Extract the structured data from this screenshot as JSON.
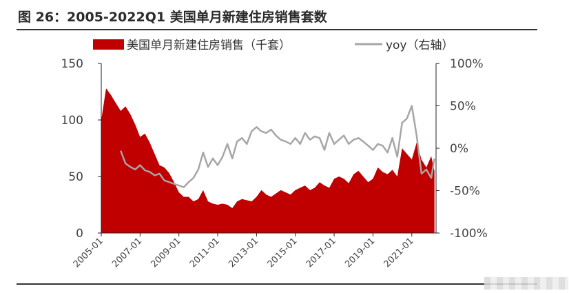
{
  "title": "图 26：2005-2022Q1 美国单月新建住房销售套数",
  "chart_data": {
    "type": "area",
    "series": [
      {
        "name": "美国单月新建住房销售（千套）",
        "type": "area",
        "axis": "left",
        "color": "#c00000",
        "x": [
          "2005-01",
          "2005-04",
          "2005-07",
          "2005-10",
          "2006-01",
          "2006-04",
          "2006-07",
          "2006-10",
          "2007-01",
          "2007-04",
          "2007-07",
          "2007-10",
          "2008-01",
          "2008-04",
          "2008-07",
          "2008-10",
          "2009-01",
          "2009-04",
          "2009-07",
          "2009-10",
          "2010-01",
          "2010-04",
          "2010-07",
          "2010-10",
          "2011-01",
          "2011-04",
          "2011-07",
          "2011-10",
          "2012-01",
          "2012-04",
          "2012-07",
          "2012-10",
          "2013-01",
          "2013-04",
          "2013-07",
          "2013-10",
          "2014-01",
          "2014-04",
          "2014-07",
          "2014-10",
          "2015-01",
          "2015-04",
          "2015-07",
          "2015-10",
          "2016-01",
          "2016-04",
          "2016-07",
          "2016-10",
          "2017-01",
          "2017-04",
          "2017-07",
          "2017-10",
          "2018-01",
          "2018-04",
          "2018-07",
          "2018-10",
          "2019-01",
          "2019-04",
          "2019-07",
          "2019-10",
          "2020-01",
          "2020-04",
          "2020-07",
          "2020-10",
          "2021-01",
          "2021-04",
          "2021-07",
          "2021-10",
          "2022-01",
          "2022-03"
        ],
        "values": [
          100,
          128,
          122,
          115,
          108,
          112,
          105,
          96,
          85,
          88,
          80,
          70,
          60,
          58,
          53,
          45,
          36,
          32,
          32,
          28,
          30,
          38,
          28,
          26,
          25,
          26,
          25,
          22,
          28,
          30,
          29,
          28,
          32,
          38,
          34,
          32,
          35,
          38,
          36,
          34,
          38,
          40,
          42,
          38,
          40,
          45,
          42,
          40,
          48,
          50,
          48,
          44,
          52,
          55,
          50,
          45,
          48,
          58,
          54,
          52,
          56,
          50,
          75,
          70,
          65,
          80,
          65,
          58,
          68,
          55
        ]
      },
      {
        "name": "yoy（右轴）",
        "type": "line",
        "axis": "right",
        "color": "#a6a6a6",
        "x": [
          "2006-01",
          "2006-04",
          "2006-07",
          "2006-10",
          "2007-01",
          "2007-04",
          "2007-07",
          "2007-10",
          "2008-01",
          "2008-04",
          "2008-07",
          "2008-10",
          "2009-01",
          "2009-04",
          "2009-07",
          "2009-10",
          "2010-01",
          "2010-04",
          "2010-07",
          "2010-10",
          "2011-01",
          "2011-04",
          "2011-07",
          "2011-10",
          "2012-01",
          "2012-04",
          "2012-07",
          "2012-10",
          "2013-01",
          "2013-04",
          "2013-07",
          "2013-10",
          "2014-01",
          "2014-04",
          "2014-07",
          "2014-10",
          "2015-01",
          "2015-04",
          "2015-07",
          "2015-10",
          "2016-01",
          "2016-04",
          "2016-07",
          "2016-10",
          "2017-01",
          "2017-04",
          "2017-07",
          "2017-10",
          "2018-01",
          "2018-04",
          "2018-07",
          "2018-10",
          "2019-01",
          "2019-04",
          "2019-07",
          "2019-10",
          "2020-01",
          "2020-04",
          "2020-07",
          "2020-10",
          "2021-01",
          "2021-04",
          "2021-07",
          "2021-10",
          "2022-01",
          "2022-03"
        ],
        "values": [
          -3,
          -18,
          -22,
          -25,
          -20,
          -26,
          -28,
          -32,
          -30,
          -38,
          -40,
          -42,
          -44,
          -46,
          -40,
          -35,
          -25,
          -5,
          -22,
          -12,
          -20,
          -10,
          5,
          -12,
          8,
          12,
          5,
          20,
          25,
          20,
          18,
          22,
          15,
          10,
          8,
          5,
          12,
          5,
          18,
          10,
          14,
          12,
          -2,
          18,
          5,
          10,
          15,
          5,
          10,
          12,
          8,
          3,
          -2,
          5,
          3,
          -5,
          12,
          -10,
          30,
          35,
          50,
          15,
          -30,
          -25,
          -35,
          -12
        ]
      }
    ],
    "x_ticks": [
      "2005-01",
      "2007-01",
      "2009-01",
      "2011-01",
      "2013-01",
      "2015-01",
      "2017-01",
      "2019-01",
      "2021-01"
    ],
    "y_left": {
      "range": [
        0,
        150
      ],
      "ticks": [
        "0",
        "50",
        "100",
        "150"
      ]
    },
    "y_right": {
      "range": [
        -100,
        100
      ],
      "ticks": [
        "-100%",
        "-50%",
        "0%",
        "50%",
        "100%"
      ]
    },
    "legend_position": "top",
    "grid": false
  }
}
